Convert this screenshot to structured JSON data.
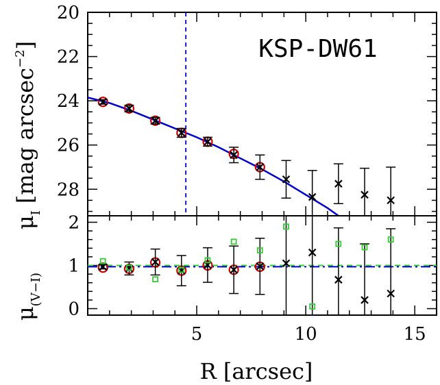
{
  "chart_data": [
    {
      "type": "scatter",
      "panel": "top",
      "annotation": "KSP-DW61",
      "ylabel_symbol": "μ",
      "ylabel_sub": "I",
      "ylabel_units": "[mag arcsec",
      "ylabel_sup": "−2",
      "ylabel_close": "]",
      "xlim": [
        0,
        16
      ],
      "ylim": [
        29.2,
        20
      ],
      "yticks": [
        20,
        22,
        24,
        26,
        28
      ],
      "series": [
        {
          "marker": "open-circle",
          "color": "#cc0000",
          "x": [
            0.7,
            1.9,
            3.1,
            4.3,
            5.5,
            6.7,
            7.9
          ],
          "y": [
            24.05,
            24.35,
            24.9,
            25.45,
            25.85,
            26.4,
            27.0
          ]
        },
        {
          "marker": "cross",
          "color": "#000000",
          "x": [
            0.7,
            1.9,
            3.1,
            4.3,
            5.5,
            6.7,
            7.9,
            9.1,
            10.3,
            11.5,
            12.7,
            13.9
          ],
          "y": [
            24.05,
            24.35,
            24.9,
            25.45,
            25.85,
            26.45,
            27.0,
            27.55,
            28.35,
            27.75,
            28.25,
            28.5
          ],
          "yerr": [
            0.1,
            0.15,
            0.15,
            0.2,
            0.2,
            0.35,
            0.55,
            0.85,
            1.2,
            0.9,
            1.2,
            1.5
          ]
        }
      ],
      "fit_line": {
        "color": "#0000cc",
        "x": [
          0,
          1,
          2,
          3,
          4,
          5,
          6,
          7,
          8,
          9,
          10,
          11,
          11.5
        ],
        "y": [
          23.85,
          24.1,
          24.45,
          24.85,
          25.25,
          25.65,
          26.1,
          26.6,
          27.1,
          27.65,
          28.25,
          28.85,
          29.2
        ]
      },
      "vline": {
        "x": 4.5,
        "color": "#0000cc"
      }
    },
    {
      "type": "scatter",
      "panel": "bottom",
      "xlabel": "R [arcsec]",
      "ylabel_symbol": "μ",
      "ylabel_sub": "(V−I)",
      "xlim": [
        0,
        16
      ],
      "ylim": [
        -0.15,
        2.15
      ],
      "xticks": [
        5,
        10,
        15
      ],
      "yticks": [
        0,
        1,
        2
      ],
      "series": [
        {
          "marker": "open-circle",
          "color": "#cc0000",
          "x": [
            0.7,
            1.9,
            3.1,
            4.3,
            5.5,
            6.7,
            7.9
          ],
          "y": [
            0.95,
            0.92,
            1.07,
            0.88,
            1.0,
            0.9,
            0.97
          ]
        },
        {
          "marker": "cross",
          "color": "#000000",
          "x": [
            0.7,
            1.9,
            3.1,
            4.3,
            5.5,
            6.7,
            7.9,
            9.1,
            10.3,
            11.5,
            12.7,
            13.9
          ],
          "y": [
            0.97,
            0.93,
            1.08,
            0.88,
            1.01,
            0.9,
            0.98,
            1.05,
            1.3,
            0.67,
            0.2,
            0.35
          ],
          "yerr": [
            0.05,
            0.15,
            0.3,
            0.35,
            0.4,
            0.55,
            0.65,
            1.2,
            1.6,
            1.2,
            1.3,
            1.5
          ]
        },
        {
          "marker": "open-square",
          "color": "#33cc33",
          "x": [
            0.7,
            1.9,
            3.1,
            4.3,
            5.5,
            6.7,
            7.9,
            9.1,
            10.3,
            11.5,
            12.7,
            13.9
          ],
          "y": [
            1.1,
            0.95,
            0.68,
            0.9,
            1.12,
            1.55,
            1.35,
            1.9,
            0.05,
            1.5,
            1.42,
            1.6
          ]
        }
      ],
      "hlines": [
        {
          "y": 1.0,
          "color": "#33cc33",
          "style": "dashed"
        },
        {
          "y": 0.97,
          "color": "#0000cc",
          "style": "dashdot"
        }
      ]
    }
  ]
}
